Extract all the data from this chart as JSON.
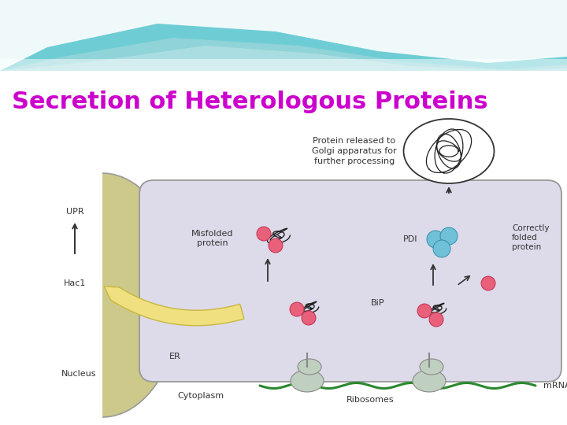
{
  "title": "Secretion of Heterologous Proteins",
  "title_color": "#CC00CC",
  "title_fontsize": 22,
  "bg_color": "#FFFFFF",
  "header_teal": "#6ECDD4",
  "wave_white": "#FFFFFF",
  "wave_teal2": "#A8D8DC",
  "er_bg": "#DDDAEA",
  "er_border": "#999999",
  "nucleus_bg": "#CCC98A",
  "nucleus_border": "#999999",
  "ribosome_color": "#C0D0C0",
  "ribosome_border": "#888888",
  "pink_dot": "#E8607A",
  "pink_border": "#C03050",
  "blue_dot": "#70C0D8",
  "blue_border": "#3090A8",
  "mrna_color": "#2A8830",
  "arrow_color": "#333333",
  "hac1_fill": "#F0E080",
  "hac1_edge": "#C8B840",
  "golgi_border": "#333333",
  "label_color": "#333333",
  "label_fs": 8,
  "labels": {
    "UPR": "UPR",
    "Hac1": "Hac1",
    "Nucleus": "Nucleus",
    "Cytoplasm": "Cytoplasm",
    "ER": "ER",
    "Misfolded_protein": "Misfolded\nprotein",
    "PDI": "PDI",
    "Correctly_folded": "Correctly\nfolded\nprotein",
    "BiP": "BiP",
    "Ribosomes": "Ribosomes",
    "mRNA": "mRNA",
    "Golgi": "Protein released to\nGolgi apparatus for\nfurther processing"
  }
}
